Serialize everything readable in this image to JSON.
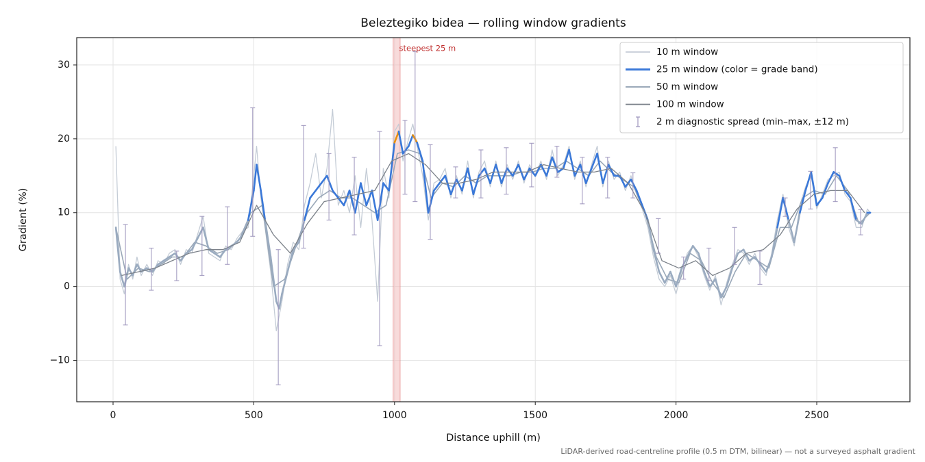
{
  "chart_data": {
    "type": "line",
    "title": "Beleztegiko bidea — rolling window gradients",
    "xlabel": "Distance uphill (m)",
    "ylabel": "Gradient (%)",
    "footnote": "LiDAR-derived road-centreline profile (0.5 m DTM, bilinear) — not a surveyed asphalt gradient",
    "xlim": [
      -129,
      2831
    ],
    "ylim": [
      -15.6,
      33.7
    ],
    "xticks": [
      0,
      500,
      1000,
      1500,
      2000,
      2500
    ],
    "yticks": [
      {
        "value": -10,
        "label": "−10"
      },
      0,
      10,
      20,
      30
    ],
    "grid": true,
    "legend": "upper right",
    "highlight": {
      "x": [
        995,
        1020
      ],
      "label": "steepest 25 m",
      "color": "#f2b8b8",
      "label_color": "#c0302f"
    },
    "grade_bands": {
      "thresholds": [
        10,
        20
      ],
      "colors": [
        "#9aabc0",
        "#3a78d8",
        "#e8900c"
      ]
    },
    "series": [
      {
        "name": "10 m window",
        "color": "#c4ccd6",
        "x": [
          10,
          25,
          40,
          55,
          70,
          85,
          100,
          120,
          140,
          160,
          180,
          200,
          220,
          240,
          260,
          280,
          300,
          320,
          340,
          360,
          380,
          400,
          420,
          440,
          460,
          480,
          500,
          510,
          525,
          540,
          560,
          580,
          590,
          600,
          620,
          640,
          660,
          680,
          700,
          720,
          740,
          760,
          780,
          800,
          820,
          840,
          860,
          880,
          900,
          920,
          940,
          960,
          980,
          1000,
          1015,
          1030,
          1050,
          1065,
          1080,
          1100,
          1120,
          1140,
          1160,
          1180,
          1200,
          1220,
          1240,
          1260,
          1280,
          1300,
          1320,
          1340,
          1360,
          1380,
          1400,
          1420,
          1440,
          1460,
          1480,
          1500,
          1520,
          1540,
          1560,
          1580,
          1600,
          1620,
          1640,
          1660,
          1680,
          1700,
          1720,
          1740,
          1760,
          1780,
          1800,
          1820,
          1840,
          1860,
          1880,
          1900,
          1920,
          1940,
          1960,
          1980,
          2000,
          2020,
          2040,
          2060,
          2080,
          2100,
          2120,
          2140,
          2160,
          2180,
          2200,
          2220,
          2240,
          2260,
          2280,
          2300,
          2320,
          2340,
          2360,
          2380,
          2400,
          2420,
          2440,
          2460,
          2480,
          2500,
          2520,
          2540,
          2560,
          2580,
          2600,
          2620,
          2640,
          2660,
          2680,
          2690
        ],
        "values": [
          19,
          1,
          -1,
          3,
          1,
          4,
          1.5,
          3,
          1.5,
          3.5,
          3,
          4.5,
          5,
          3,
          5,
          4.5,
          7,
          9.5,
          4.5,
          4,
          3.5,
          5.5,
          5,
          6.5,
          7.5,
          8,
          15,
          19,
          12,
          8,
          2,
          -6,
          -4,
          -2,
          3,
          6,
          5,
          11,
          14,
          18,
          12,
          16,
          24,
          11,
          13,
          10,
          15,
          8,
          16,
          9,
          -2,
          16,
          12,
          21,
          22,
          17,
          20,
          22,
          19,
          15,
          9,
          14,
          14.5,
          16,
          12,
          15,
          12.5,
          17,
          12,
          15.5,
          17,
          13.5,
          17,
          13.5,
          16.5,
          14.5,
          17,
          14,
          16.5,
          15,
          17,
          14.5,
          18.5,
          15,
          16.5,
          19,
          14.5,
          17,
          13.5,
          16.5,
          19,
          13.5,
          17,
          14.5,
          15.5,
          13,
          15,
          12.5,
          10.5,
          8,
          4,
          1,
          0,
          1.5,
          -1,
          2,
          4.5,
          5.5,
          4,
          1.5,
          -0.5,
          1.5,
          -2.5,
          0.5,
          3,
          5,
          4.5,
          3,
          4.5,
          2.5,
          1.5,
          4.5,
          9,
          12.5,
          8,
          5.5,
          11,
          13.5,
          15,
          10.5,
          12.5,
          14.5,
          15,
          15.5,
          12.5,
          11.5,
          8,
          8,
          10.5,
          10
        ]
      },
      {
        "name": "25 m window (color = grade band)",
        "color": "#3a78d8",
        "banded": true,
        "x": [
          10,
          25,
          40,
          55,
          70,
          85,
          100,
          120,
          140,
          160,
          180,
          200,
          220,
          240,
          260,
          280,
          300,
          320,
          340,
          360,
          380,
          400,
          420,
          440,
          460,
          480,
          500,
          510,
          525,
          540,
          560,
          580,
          590,
          600,
          620,
          640,
          660,
          680,
          700,
          720,
          740,
          760,
          780,
          800,
          820,
          840,
          860,
          880,
          900,
          920,
          940,
          960,
          980,
          1000,
          1015,
          1030,
          1050,
          1065,
          1080,
          1100,
          1120,
          1140,
          1160,
          1180,
          1200,
          1220,
          1240,
          1260,
          1280,
          1300,
          1320,
          1340,
          1360,
          1380,
          1400,
          1420,
          1440,
          1460,
          1480,
          1500,
          1520,
          1540,
          1560,
          1580,
          1600,
          1620,
          1640,
          1660,
          1680,
          1700,
          1720,
          1740,
          1760,
          1780,
          1800,
          1820,
          1840,
          1860,
          1880,
          1900,
          1920,
          1940,
          1960,
          1980,
          2000,
          2020,
          2040,
          2060,
          2080,
          2100,
          2120,
          2140,
          2160,
          2180,
          2200,
          2220,
          2240,
          2260,
          2280,
          2300,
          2320,
          2340,
          2360,
          2380,
          2400,
          2420,
          2440,
          2460,
          2480,
          2500,
          2520,
          2540,
          2560,
          2580,
          2600,
          2620,
          2640,
          2660,
          2680,
          2690
        ],
        "values": [
          8,
          2,
          0,
          2.5,
          1.5,
          3,
          2,
          2.5,
          2,
          3,
          3.5,
          4,
          4.5,
          3.5,
          4.5,
          5,
          6.5,
          8,
          5,
          4.5,
          4,
          5,
          5.5,
          6,
          7,
          9,
          13,
          16.5,
          13,
          9,
          4,
          -2,
          -3,
          -1,
          2,
          5,
          6,
          9,
          12,
          13,
          14,
          15,
          13,
          12,
          11,
          13,
          10,
          14,
          11,
          13,
          9,
          14,
          13,
          19.5,
          21,
          18,
          19,
          20.5,
          19.5,
          17,
          10,
          13,
          14,
          15,
          12.5,
          14.5,
          13,
          16,
          12.5,
          15,
          16,
          14,
          16.5,
          14,
          16,
          15,
          16.5,
          14.5,
          16,
          15,
          16.5,
          15,
          17.5,
          15.5,
          16,
          18.5,
          15,
          16.5,
          14,
          16,
          18,
          14,
          16.5,
          15,
          15,
          13.5,
          14.5,
          13,
          11,
          9,
          5,
          2,
          0.5,
          2,
          0,
          2.5,
          4,
          5.5,
          4.5,
          2,
          0,
          1,
          -1.5,
          0,
          2.5,
          4.5,
          5,
          3.5,
          4,
          3,
          2,
          4,
          8,
          12,
          9,
          6,
          10,
          13,
          15.5,
          11,
          12,
          14,
          15.5,
          15,
          13,
          12,
          9,
          8.5,
          10,
          10
        ]
      },
      {
        "name": "50 m window",
        "color": "#9aa8b8",
        "x": [
          10,
          50,
          90,
          130,
          170,
          210,
          250,
          290,
          330,
          370,
          410,
          450,
          490,
          530,
          570,
          610,
          650,
          690,
          730,
          770,
          810,
          850,
          890,
          930,
          970,
          1010,
          1050,
          1090,
          1130,
          1170,
          1210,
          1250,
          1290,
          1330,
          1370,
          1410,
          1450,
          1490,
          1530,
          1570,
          1610,
          1650,
          1690,
          1730,
          1770,
          1810,
          1850,
          1890,
          1930,
          1970,
          2010,
          2050,
          2090,
          2130,
          2170,
          2210,
          2250,
          2290,
          2330,
          2370,
          2410,
          2450,
          2490,
          2530,
          2570,
          2610,
          2650,
          2690
        ],
        "values": [
          8,
          1,
          2.5,
          2,
          3,
          4,
          4,
          6,
          5.5,
          4.5,
          5,
          6.5,
          10,
          11,
          0,
          1,
          5.5,
          10,
          12,
          13,
          12,
          12,
          11,
          10,
          11,
          18,
          18.5,
          18,
          12,
          14,
          13.5,
          15,
          14,
          15,
          15,
          15,
          15.5,
          15.5,
          16,
          16,
          17,
          16,
          15,
          17,
          15.5,
          14.5,
          13.5,
          10,
          4,
          1,
          0.5,
          4.5,
          3.5,
          0.5,
          -1.5,
          2,
          4.5,
          3.5,
          2.5,
          8,
          8,
          12,
          13,
          12.5,
          15,
          13,
          8.5,
          10
        ]
      },
      {
        "name": "100 m window",
        "color": "#7c828a",
        "x": [
          30,
          90,
          150,
          210,
          270,
          330,
          390,
          450,
          510,
          570,
          630,
          690,
          750,
          810,
          870,
          930,
          990,
          1050,
          1110,
          1170,
          1230,
          1290,
          1350,
          1410,
          1470,
          1530,
          1590,
          1650,
          1710,
          1770,
          1830,
          1890,
          1950,
          2010,
          2070,
          2130,
          2190,
          2250,
          2310,
          2370,
          2430,
          2490,
          2550,
          2610,
          2670
        ],
        "values": [
          1.5,
          2,
          2.5,
          3.5,
          4.5,
          5,
          5,
          6,
          11,
          7,
          4.5,
          8.5,
          11.5,
          12,
          12.5,
          13,
          17,
          18,
          16.5,
          14,
          14,
          14.5,
          15.5,
          15.5,
          15.5,
          16.5,
          16,
          15.5,
          15.5,
          16,
          14,
          10,
          3.5,
          2.5,
          3.5,
          1.5,
          2.5,
          4.5,
          5,
          7,
          10.5,
          12.5,
          13,
          13,
          10
        ]
      }
    ],
    "errorbars": {
      "name": "2 m diagnostic spread (min–max, ±12 m)",
      "color": "#9c94bc",
      "x": [
        44,
        136,
        226,
        316,
        406,
        496,
        587,
        677,
        767,
        857,
        947,
        1037,
        1073,
        1127,
        1217,
        1307,
        1397,
        1487,
        1577,
        1667,
        1757,
        1847,
        1937,
        2027,
        2117,
        2208,
        2298,
        2388,
        2478,
        2566,
        2656
      ],
      "min": [
        -5.2,
        -0.5,
        0.8,
        1.5,
        3,
        6.8,
        -13.3,
        5.2,
        9,
        7,
        -8,
        12.5,
        11.5,
        6.4,
        12,
        12,
        12.5,
        13.5,
        14.8,
        11.2,
        12,
        12,
        4.5,
        1,
        0.8,
        3,
        0.3,
        9.5,
        10.5,
        11.5,
        7
      ],
      "max": [
        8.4,
        5.2,
        4.8,
        9.5,
        10.8,
        24.2,
        5,
        21.8,
        18,
        17.5,
        21,
        22.5,
        31.8,
        19.2,
        16.2,
        18.5,
        18.8,
        19.4,
        19,
        17.5,
        17.5,
        15.4,
        9.2,
        4,
        5.2,
        8,
        4.8,
        12,
        15.6,
        18.8,
        10.4
      ]
    }
  }
}
